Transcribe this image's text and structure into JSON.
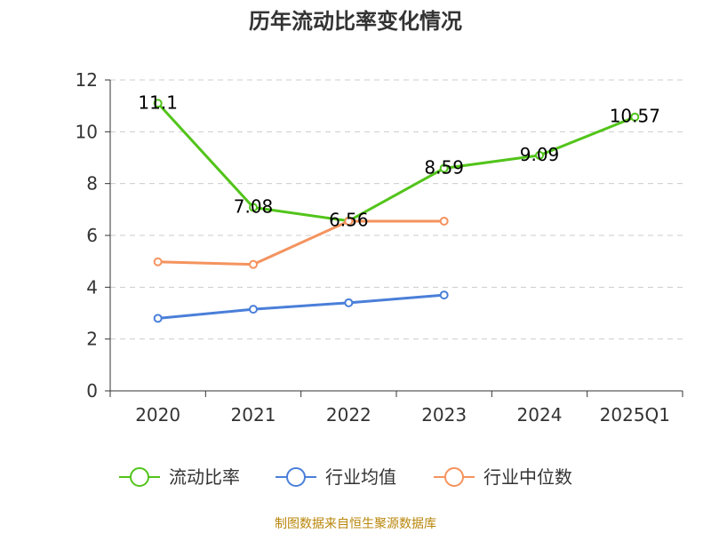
{
  "chart_data": {
    "type": "line",
    "title": "历年流动比率变化情况",
    "categories": [
      "2020",
      "2021",
      "2022",
      "2023",
      "2024",
      "2025Q1"
    ],
    "ylim": [
      0,
      12
    ],
    "yticks": [
      0,
      2,
      4,
      6,
      8,
      10,
      12
    ],
    "grid": true,
    "legend_position": "bottom",
    "series": [
      {
        "name": "流动比率",
        "color": "#52c41a",
        "values": [
          11.1,
          7.08,
          6.56,
          8.59,
          9.09,
          10.57
        ],
        "labels": [
          "11.1",
          "7.08",
          "6.56",
          "8.59",
          "9.09",
          "10.57"
        ],
        "show_labels": true
      },
      {
        "name": "行业均值",
        "color": "#4a7fd9",
        "values": [
          2.8,
          3.15,
          3.4,
          3.7,
          null,
          null
        ],
        "show_labels": false
      },
      {
        "name": "行业中位数",
        "color": "#f4935e",
        "values": [
          4.98,
          4.88,
          6.55,
          6.55,
          null,
          null
        ],
        "show_labels": false
      }
    ],
    "source": "制图数据来自恒生聚源数据库"
  }
}
